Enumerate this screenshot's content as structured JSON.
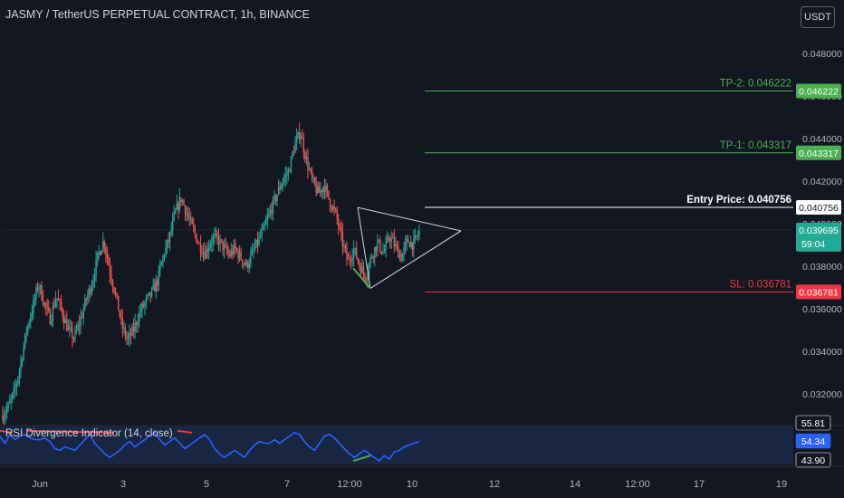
{
  "header": {
    "title": "JASMY / TetherUS PERPETUAL CONTRACT, 1h, BINANCE",
    "currency_button": "USDT"
  },
  "rsi_panel": {
    "label": "RSI Divergence Indicator (14, close)",
    "levels": [
      "55.81",
      "54.34",
      "43.90"
    ]
  },
  "colors": {
    "background": "#131722",
    "up": "#26a69a",
    "down": "#ef5350",
    "tp": "#4caf50",
    "sl": "#f23645",
    "entry": "#ffffff",
    "rsi_line": "#2962ff",
    "rsi_band": "#1e3a6b",
    "divergence_bull": "#4caf50",
    "divergence_bear": "#f23645"
  },
  "chart_data": {
    "type": "candlestick",
    "symbol": "JASMY / TetherUS PERPETUAL CONTRACT",
    "interval": "1h",
    "exchange": "BINANCE",
    "x_ticks": [
      "Jun",
      "3",
      "5",
      "7",
      "12:00",
      "10",
      "12",
      "14",
      "12:00",
      "17",
      "19"
    ],
    "y_ticks": [
      "0.048000",
      "0.046000",
      "0.044000",
      "0.042000",
      "0.040000",
      "0.038000",
      "0.036000",
      "0.034000",
      "0.032000"
    ],
    "ylim": [
      0.0305,
      0.0505
    ],
    "last_price": "0.039695",
    "countdown": "59:04",
    "levels": [
      {
        "name": "TP-2",
        "label": "TP-2: 0.046222",
        "value": 0.046222,
        "tag": "0.046222",
        "kind": "tp"
      },
      {
        "name": "TP-1",
        "label": "TP-1: 0.043317",
        "value": 0.043317,
        "tag": "0.043317",
        "kind": "tp"
      },
      {
        "name": "Entry Price",
        "label": "Entry Price: 0.040756",
        "value": 0.040756,
        "tag": "0.040756",
        "kind": "entry"
      },
      {
        "name": "SL",
        "label": "SL: 0.036781",
        "value": 0.036781,
        "tag": "0.036781",
        "kind": "sl"
      }
    ],
    "pattern": {
      "type": "triangle",
      "upper": [
        [
          "Jun 8 22:00",
          0.04075
        ],
        [
          "Jun 11 12:00",
          0.03965
        ]
      ],
      "lower": [
        [
          "Jun 9 06:00",
          0.03695
        ],
        [
          "Jun 10 08:00",
          0.0386
        ]
      ],
      "bullish_divergence": [
        [
          "Jun 8 23:00",
          0.0379
        ],
        [
          "Jun 9 06:00",
          0.03695
        ]
      ]
    },
    "price_path": [
      0.031,
      0.0314,
      0.0321,
      0.0334,
      0.035,
      0.036,
      0.0372,
      0.0362,
      0.0355,
      0.0366,
      0.0358,
      0.035,
      0.0346,
      0.0354,
      0.0364,
      0.0372,
      0.0385,
      0.0392,
      0.0378,
      0.0366,
      0.0352,
      0.0345,
      0.035,
      0.0358,
      0.0363,
      0.0367,
      0.0373,
      0.0385,
      0.0393,
      0.0405,
      0.0412,
      0.0404,
      0.0397,
      0.039,
      0.0386,
      0.0392,
      0.0393,
      0.0389,
      0.0385,
      0.0388,
      0.0384,
      0.038,
      0.0386,
      0.0392,
      0.0398,
      0.0406,
      0.0413,
      0.042,
      0.0424,
      0.0436,
      0.0443,
      0.043,
      0.042,
      0.0414,
      0.0418,
      0.041,
      0.0404,
      0.0392,
      0.0382,
      0.0388,
      0.038,
      0.0375,
      0.0385,
      0.0391,
      0.0386,
      0.0394,
      0.0389,
      0.0384,
      0.0392,
      0.039,
      0.0396
    ],
    "rsi": {
      "levels": [
        55.81,
        54.34,
        43.9
      ],
      "values": [
        54,
        50,
        55,
        52,
        54,
        55,
        53,
        52,
        52,
        53,
        51,
        47,
        46,
        48,
        47,
        46,
        49,
        52,
        55,
        50,
        47,
        44,
        42,
        44,
        46,
        49,
        51,
        48,
        50,
        52,
        54,
        56,
        52,
        49,
        51,
        53,
        50,
        47,
        49,
        51,
        53,
        55,
        52,
        47,
        44,
        42,
        44,
        46,
        44,
        42,
        46,
        49,
        51,
        50,
        50,
        52,
        50,
        52,
        54,
        56,
        55,
        51,
        48,
        46,
        50,
        54,
        55,
        53,
        50,
        47,
        44,
        42,
        44,
        46,
        44,
        42,
        40,
        43,
        41,
        45,
        46,
        48,
        49,
        50,
        51
      ]
    }
  }
}
